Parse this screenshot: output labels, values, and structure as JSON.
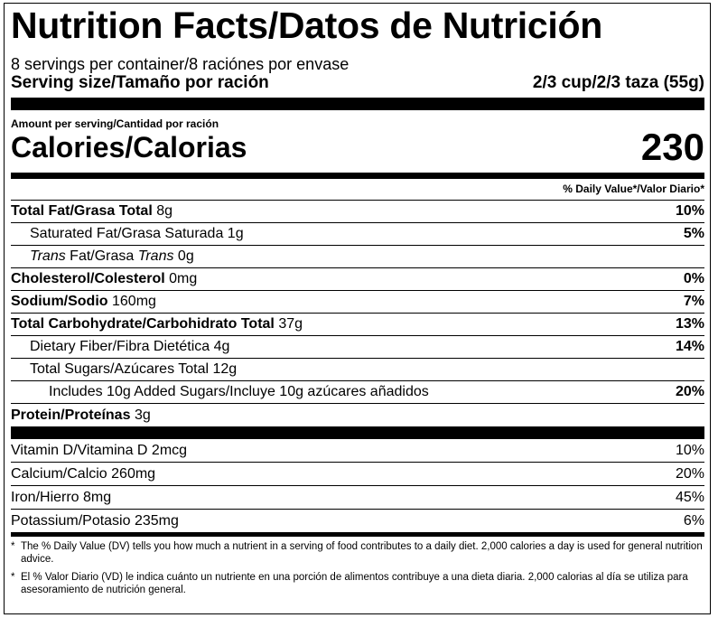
{
  "title": "Nutrition Facts/Datos de Nutrición",
  "servings": "8 servings per container/8 raciónes por envase",
  "serving_size_label": "Serving size/Tamaño por ración",
  "serving_size_value": "2/3 cup/2/3 taza (55g)",
  "amount_label": "Amount per serving/Cantidad por ración",
  "calories_label": "Calories/Calorias",
  "calories_value": "230",
  "dv_header": "% Daily Value*/Valor Diario*",
  "nutrients": {
    "total_fat": {
      "name": "Total Fat/Grasa Total",
      "amount": "8g",
      "pct": "10%"
    },
    "sat_fat": {
      "name": "Saturated Fat/Grasa Saturada",
      "amount": "1g",
      "pct": "5%"
    },
    "trans_fat": {
      "pre": "Trans",
      "mid": " Fat/Grasa ",
      "italic2": "Trans",
      "amount": "0g"
    },
    "cholesterol": {
      "name": "Cholesterol/Colesterol",
      "amount": "0mg",
      "pct": "0%"
    },
    "sodium": {
      "name": "Sodium/Sodio",
      "amount": "160mg",
      "pct": "7%"
    },
    "carbs": {
      "name": "Total Carbohydrate/Carbohidrato Total",
      "amount": "37g",
      "pct": "13%"
    },
    "fiber": {
      "name": "Dietary Fiber/Fibra Dietética",
      "amount": "4g",
      "pct": "14%"
    },
    "sugars": {
      "name": "Total Sugars/Azúcares Total",
      "amount": "12g"
    },
    "added_sugars": {
      "name": "Includes 10g Added Sugars/Incluye 10g azúcares añadidos",
      "pct": "20%"
    },
    "protein": {
      "name": "Protein/Proteínas",
      "amount": "3g"
    }
  },
  "vitamins": {
    "vitamin_d": {
      "name": "Vitamin D/Vitamina D 2mcg",
      "pct": "10%"
    },
    "calcium": {
      "name": "Calcium/Calcio 260mg",
      "pct": "20%"
    },
    "iron": {
      "name": "Iron/Hierro 8mg",
      "pct": "45%"
    },
    "potassium": {
      "name": "Potassium/Potasio 235mg",
      "pct": "6%"
    }
  },
  "footnote_en": "The % Daily Value (DV) tells you how much a nutrient in a serving of food contributes to a daily diet. 2,000 calories a day is used for general nutrition advice.",
  "footnote_es": "El % Valor Diario (VD) le indica cuánto un nutriente en una porción de alimentos contribuye a una dieta diaria. 2,000 calorias al día se utiliza para asesoramiento de nutrición general.",
  "footnote_star": "*"
}
